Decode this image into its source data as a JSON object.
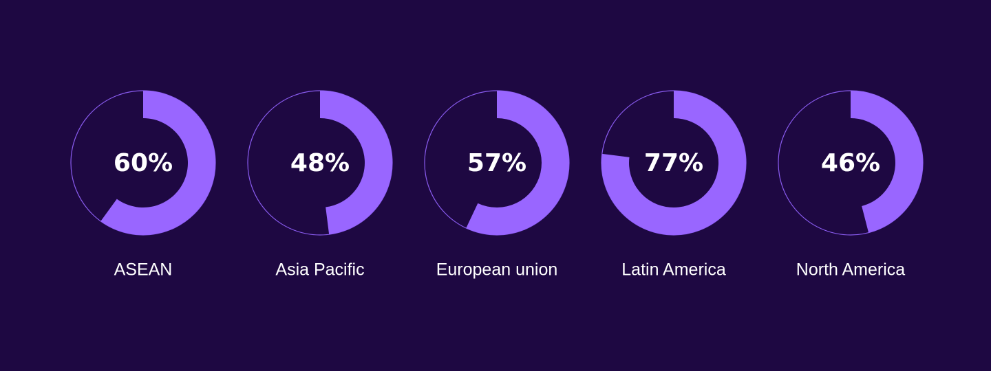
{
  "chart_data": {
    "type": "gauge",
    "categories": [
      "ASEAN",
      "Asia Pacific",
      "European union",
      "Latin America",
      "North America"
    ],
    "values": [
      60,
      48,
      57,
      77,
      46
    ],
    "value_labels": [
      "60%",
      "48%",
      "57%",
      "77%",
      "46%"
    ],
    "color": "#9966ff",
    "track_color": "#8a5cf0"
  }
}
